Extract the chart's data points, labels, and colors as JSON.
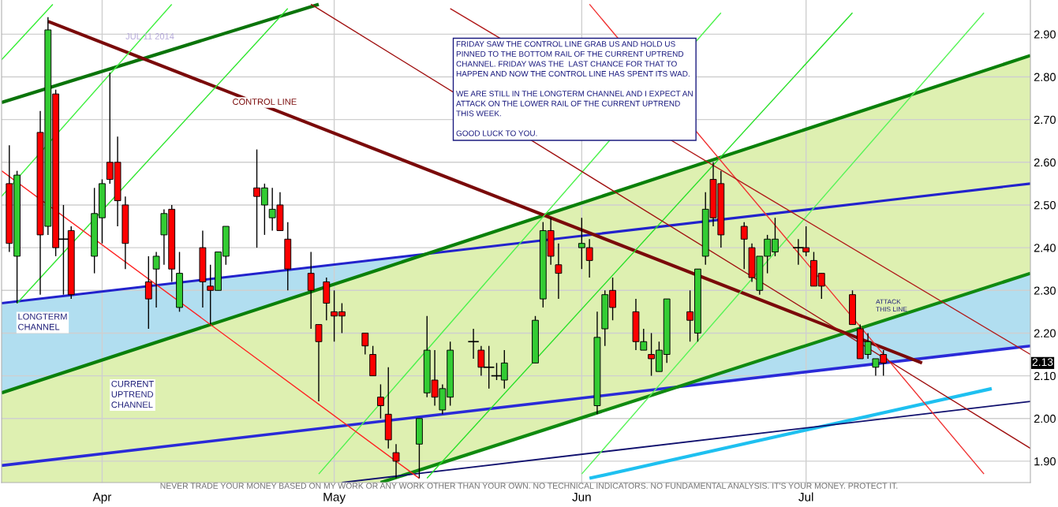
{
  "chart_data": {
    "type": "candlestick",
    "subtitle": "JUL 11 2014",
    "x": [
      "2014-03-20",
      "2014-03-21",
      "2014-03-24",
      "2014-03-25",
      "2014-03-26",
      "2014-03-27",
      "2014-03-28",
      "2014-03-31",
      "2014-04-01",
      "2014-04-02",
      "2014-04-03",
      "2014-04-04",
      "2014-04-07",
      "2014-04-08",
      "2014-04-09",
      "2014-04-10",
      "2014-04-11",
      "2014-04-14",
      "2014-04-15",
      "2014-04-16",
      "2014-04-17",
      "2014-04-21",
      "2014-04-22",
      "2014-04-23",
      "2014-04-24",
      "2014-04-25",
      "2014-04-28",
      "2014-04-29",
      "2014-04-30",
      "2014-05-01",
      "2014-05-02",
      "2014-05-05",
      "2014-05-06",
      "2014-05-07",
      "2014-05-08",
      "2014-05-09",
      "2014-05-12",
      "2014-05-13",
      "2014-05-14",
      "2014-05-15",
      "2014-05-16",
      "2014-05-19",
      "2014-05-20",
      "2014-05-21",
      "2014-05-22",
      "2014-05-23",
      "2014-05-27",
      "2014-05-28",
      "2014-05-29",
      "2014-05-30",
      "2014-06-02",
      "2014-06-03",
      "2014-06-04",
      "2014-06-05",
      "2014-06-06",
      "2014-06-09",
      "2014-06-10",
      "2014-06-11",
      "2014-06-12",
      "2014-06-13",
      "2014-06-16",
      "2014-06-17",
      "2014-06-18",
      "2014-06-19",
      "2014-06-20",
      "2014-06-23",
      "2014-06-24",
      "2014-06-25",
      "2014-06-26",
      "2014-06-27",
      "2014-06-30",
      "2014-07-01",
      "2014-07-02",
      "2014-07-03",
      "2014-07-07",
      "2014-07-08",
      "2014-07-09",
      "2014-07-10",
      "2014-07-11"
    ],
    "ohlc": [
      [
        2.55,
        2.64,
        2.39,
        2.41
      ],
      [
        2.38,
        2.58,
        2.27,
        2.57
      ],
      [
        2.67,
        2.72,
        2.29,
        2.43
      ],
      [
        2.45,
        2.94,
        2.43,
        2.91
      ],
      [
        2.76,
        2.77,
        2.38,
        2.4
      ],
      [
        2.42,
        2.5,
        2.29,
        2.42
      ],
      [
        2.44,
        2.45,
        2.28,
        2.29
      ],
      [
        2.38,
        2.54,
        2.34,
        2.48
      ],
      [
        2.47,
        2.56,
        2.41,
        2.55
      ],
      [
        2.6,
        2.81,
        2.55,
        2.56
      ],
      [
        2.6,
        2.66,
        2.45,
        2.51
      ],
      [
        2.5,
        2.52,
        2.35,
        2.41
      ],
      [
        2.32,
        2.38,
        2.21,
        2.28
      ],
      [
        2.35,
        2.39,
        2.26,
        2.38
      ],
      [
        2.43,
        2.49,
        2.36,
        2.48
      ],
      [
        2.49,
        2.5,
        2.32,
        2.35
      ],
      [
        2.26,
        2.39,
        2.25,
        2.34
      ],
      [
        2.4,
        2.44,
        2.26,
        2.32
      ],
      [
        2.31,
        2.36,
        2.22,
        2.3
      ],
      [
        2.3,
        2.39,
        2.3,
        2.39
      ],
      [
        2.38,
        2.45,
        2.36,
        2.45
      ],
      [
        2.54,
        2.63,
        2.4,
        2.52
      ],
      [
        2.5,
        2.55,
        2.43,
        2.54
      ],
      [
        2.47,
        2.54,
        2.44,
        2.49
      ],
      [
        2.5,
        2.53,
        2.44,
        2.44
      ],
      [
        2.42,
        2.46,
        2.3,
        2.35
      ],
      [
        2.34,
        2.39,
        2.21,
        2.3
      ],
      [
        2.22,
        2.22,
        2.04,
        2.18
      ],
      [
        2.32,
        2.33,
        2.23,
        2.27
      ],
      [
        2.25,
        2.3,
        2.18,
        2.24
      ],
      [
        2.25,
        2.27,
        2.2,
        2.24
      ],
      [
        2.2,
        2.2,
        2.15,
        2.17
      ],
      [
        2.15,
        2.17,
        2.1,
        2.1
      ],
      [
        2.05,
        2.08,
        2.0,
        2.03
      ],
      [
        2.01,
        2.12,
        1.93,
        1.95
      ],
      [
        1.92,
        1.94,
        1.86,
        1.9
      ],
      [
        1.94,
        2.0,
        1.86,
        2.0
      ],
      [
        2.06,
        2.24,
        2.05,
        2.16
      ],
      [
        2.09,
        2.16,
        2.03,
        2.05
      ],
      [
        2.02,
        2.08,
        2.01,
        2.07
      ],
      [
        2.05,
        2.18,
        2.03,
        2.16
      ],
      [
        2.18,
        2.21,
        2.14,
        2.18
      ],
      [
        2.16,
        2.17,
        2.1,
        2.12
      ],
      [
        2.12,
        2.17,
        2.07,
        2.12
      ],
      [
        2.1,
        2.13,
        2.09,
        2.1
      ],
      [
        2.09,
        2.16,
        2.07,
        2.13
      ],
      [
        2.13,
        2.24,
        2.13,
        2.23
      ],
      [
        2.28,
        2.46,
        2.26,
        2.44
      ],
      [
        2.44,
        2.47,
        2.36,
        2.38
      ],
      [
        2.36,
        2.41,
        2.28,
        2.34
      ],
      [
        2.4,
        2.47,
        2.35,
        2.41
      ],
      [
        2.4,
        2.42,
        2.33,
        2.37
      ],
      [
        2.03,
        2.25,
        2.01,
        2.19
      ],
      [
        2.21,
        2.3,
        2.17,
        2.29
      ],
      [
        2.3,
        2.33,
        2.23,
        2.26
      ],
      [
        2.25,
        2.28,
        2.16,
        2.18
      ],
      [
        2.16,
        2.21,
        2.16,
        2.18
      ],
      [
        2.15,
        2.2,
        2.1,
        2.14
      ],
      [
        2.11,
        2.18,
        2.11,
        2.16
      ],
      [
        2.15,
        2.28,
        2.13,
        2.28
      ],
      [
        2.25,
        2.3,
        2.18,
        2.23
      ],
      [
        2.2,
        2.35,
        2.18,
        2.35
      ],
      [
        2.38,
        2.53,
        2.36,
        2.49
      ],
      [
        2.56,
        2.6,
        2.45,
        2.47
      ],
      [
        2.55,
        2.58,
        2.4,
        2.43
      ],
      [
        2.45,
        2.46,
        2.35,
        2.42
      ],
      [
        2.4,
        2.41,
        2.32,
        2.33
      ],
      [
        2.3,
        2.38,
        2.29,
        2.38
      ],
      [
        2.38,
        2.43,
        2.34,
        2.42
      ],
      [
        2.39,
        2.47,
        2.38,
        2.42
      ],
      [
        2.4,
        2.42,
        2.36,
        2.4
      ],
      [
        2.4,
        2.45,
        2.38,
        2.39
      ],
      [
        2.37,
        2.39,
        2.31,
        2.31
      ],
      [
        2.34,
        2.34,
        2.28,
        2.31
      ],
      [
        2.29,
        2.3,
        2.22,
        2.22
      ],
      [
        2.21,
        2.22,
        2.14,
        2.14
      ],
      [
        2.15,
        2.2,
        2.14,
        2.18
      ],
      [
        2.12,
        2.14,
        2.1,
        2.14
      ],
      [
        2.15,
        2.16,
        2.1,
        2.13
      ]
    ],
    "colors": [
      "#ff0000",
      "#33cc33",
      "#ff0000",
      "#33cc33",
      "#ff0000",
      "#000000",
      "#ff0000",
      "#33cc33",
      "#33cc33",
      "#ff0000",
      "#ff0000",
      "#ff0000",
      "#ff0000",
      "#33cc33",
      "#33cc33",
      "#ff0000",
      "#33cc33",
      "#ff0000",
      "#ff0000",
      "#33cc33",
      "#33cc33",
      "#ff0000",
      "#33cc33",
      "#33cc33",
      "#ff0000",
      "#ff0000",
      "#ff0000",
      "#ff0000",
      "#ff0000",
      "#ff0000",
      "#ff0000",
      "#ff0000",
      "#ff0000",
      "#ff0000",
      "#ff0000",
      "#ff0000",
      "#33cc33",
      "#33cc33",
      "#ff0000",
      "#33cc33",
      "#33cc33",
      "#000000",
      "#ff0000",
      "#000000",
      "#000000",
      "#33cc33",
      "#33cc33",
      "#33cc33",
      "#ff0000",
      "#ff0000",
      "#33cc33",
      "#ff0000",
      "#33cc33",
      "#33cc33",
      "#ff0000",
      "#ff0000",
      "#33cc33",
      "#ff0000",
      "#33cc33",
      "#33cc33",
      "#ff0000",
      "#33cc33",
      "#33cc33",
      "#ff0000",
      "#ff0000",
      "#ff0000",
      "#ff0000",
      "#33cc33",
      "#33cc33",
      "#33cc33",
      "#000000",
      "#ff0000",
      "#ff0000",
      "#ff0000",
      "#ff0000",
      "#ff0000",
      "#33cc33",
      "#33cc33",
      "#ff0000"
    ],
    "series": [
      {
        "type": "line",
        "x": [
          "2014-03-19",
          "2014-07-30"
        ],
        "values": [
          2.27,
          2.55
        ],
        "lower": [
          1.89,
          2.17
        ],
        "upper": [
          2.27,
          2.55
        ],
        "color": "#2222cc"
      },
      {
        "type": "line",
        "x": [
          "2014-03-19",
          "2014-07-30"
        ],
        "values": [
          1.89,
          2.17
        ],
        "color": "#2a2ad8"
      },
      {
        "type": "line",
        "x": [
          "2014-03-19",
          "2014-05-07",
          "2014-07-30"
        ],
        "values": [
          2.06,
          2.35,
          2.85
        ],
        "lower": [
          1.85,
          1.85,
          2.34
        ],
        "upper": [
          2.06,
          2.35,
          2.85
        ],
        "color": "#0a800a"
      },
      {
        "type": "line",
        "x": [
          "2014-03-19",
          "2014-04-29"
        ],
        "values": [
          2.74,
          2.97
        ],
        "color": "#0b740b"
      },
      {
        "type": "line",
        "x": [
          "2014-05-07",
          "2014-07-30"
        ],
        "values": [
          1.85,
          2.34
        ],
        "color": "#108a10"
      },
      {
        "type": "line",
        "x": [
          "2014-03-25",
          "2014-07-16"
        ],
        "values": [
          2.93,
          2.13
        ],
        "color": "#7a0a0a"
      },
      {
        "type": "line",
        "x": [
          "2014-06-03",
          "2014-07-25"
        ],
        "values": [
          1.86,
          2.07
        ],
        "color": "#1ec0f0"
      },
      {
        "type": "line",
        "x": [
          "2014-05-02",
          "2014-07-30"
        ],
        "values": [
          1.85,
          2.04
        ],
        "color": "#10106e"
      },
      {
        "type": "line",
        "x": [
          "2014-03-19",
          "2014-03-25T15:00"
        ],
        "values": [
          2.84,
          2.97
        ],
        "color": "#33ee33"
      },
      {
        "type": "line",
        "x": [
          "2014-03-19",
          "2014-04-10"
        ],
        "values": [
          2.52,
          2.97
        ],
        "color": "#40f040"
      },
      {
        "type": "line",
        "x": [
          "2014-03-21",
          "2014-04-25"
        ],
        "values": [
          2.27,
          2.96
        ],
        "color": "#2ee62e"
      },
      {
        "type": "line",
        "x": [
          "2014-04-29",
          "2014-06-20"
        ],
        "values": [
          1.87,
          2.95
        ],
        "color": "#4cf24c"
      },
      {
        "type": "line",
        "x": [
          "2014-05-13",
          "2014-07-07"
        ],
        "values": [
          1.86,
          2.95
        ],
        "color": "#28e028"
      },
      {
        "type": "line",
        "x": [
          "2014-06-02",
          "2014-07-24"
        ],
        "values": [
          1.87,
          2.95
        ],
        "color": "#58f458"
      },
      {
        "type": "line",
        "x": [
          "2014-03-19",
          "2014-05-12"
        ],
        "values": [
          2.58,
          1.86
        ],
        "color": "#ff2020"
      },
      {
        "type": "line",
        "x": [
          "2014-06-03",
          "2014-07-24"
        ],
        "values": [
          2.97,
          1.87
        ],
        "color": "#f03030"
      },
      {
        "type": "line",
        "x": [
          "2014-04-28",
          "2014-07-30"
        ],
        "values": [
          2.97,
          1.93
        ],
        "color": "#a01010"
      },
      {
        "type": "line",
        "x": [
          "2014-05-16",
          "2014-07-30"
        ],
        "values": [
          2.96,
          2.15
        ],
        "color": "#b01818"
      }
    ],
    "annotations": [
      {
        "text": "CONTROL LINE",
        "x": "2014-04-22",
        "y": 2.74
      },
      "LONGTERM\nCHANNEL",
      "CURRENT\nUPTREND\nCHANNEL",
      "ATTACK\nTHIS LINE",
      {
        "text": "2.13",
        "y": 2.13
      },
      "FRIDAY SAW THE CONTROL LINE GRAB US AND HOLD US\nPINNED TO THE BOTTOM RAIL OF THE CURRENT UPTREND\nCHANNEL. FRIDAY WAS THE  LAST CHANCE FOR THAT TO\nHAPPEN AND NOW THE CONTROL LINE HAS SPENT ITS WAD.\n\nWE ARE STILL IN THE LONGTERM CHANNEL AND I EXPECT AN\nATTACK ON THE LOWER RAIL OF THE CURRENT UPTREND\nTHIS WEEK.\n\nGOOD LUCK TO YOU.",
      "NEVER TRADE YOUR MONEY BASED ON MY WORK OR ANY WORK OTHER THAN YOUR OWN. NO TECHNICAL INDICATORS. NO FUNDAMENTAL ANALYSIS. IT'S YOUR MONEY. PROTECT IT."
    ],
    "xlim": [
      "2014-03-19",
      "2014-07-30"
    ],
    "xticks": [
      {
        "value": "2014-04-01",
        "label": "Apr"
      },
      {
        "value": "2014-05-01",
        "label": "May"
      },
      {
        "value": "2014-06-02",
        "label": "Jun"
      },
      {
        "value": "2014-07-01",
        "label": "Jul"
      }
    ],
    "ylim": [
      1.85,
      2.98
    ],
    "yticks": [
      {
        "value": 1.9,
        "label": "1.90"
      },
      {
        "value": 2.0,
        "label": "2.00"
      },
      {
        "value": 2.1,
        "label": "2.10"
      },
      {
        "value": 2.2,
        "label": "2.20"
      },
      {
        "value": 2.3,
        "label": "2.30"
      },
      {
        "value": 2.4,
        "label": "2.40"
      },
      {
        "value": 2.5,
        "label": "2.50"
      },
      {
        "value": 2.6,
        "label": "2.60"
      },
      {
        "value": 2.7,
        "label": "2.70"
      },
      {
        "value": 2.8,
        "label": "2.80"
      },
      {
        "value": 2.9,
        "label": "2.90"
      }
    ],
    "grid": true
  }
}
